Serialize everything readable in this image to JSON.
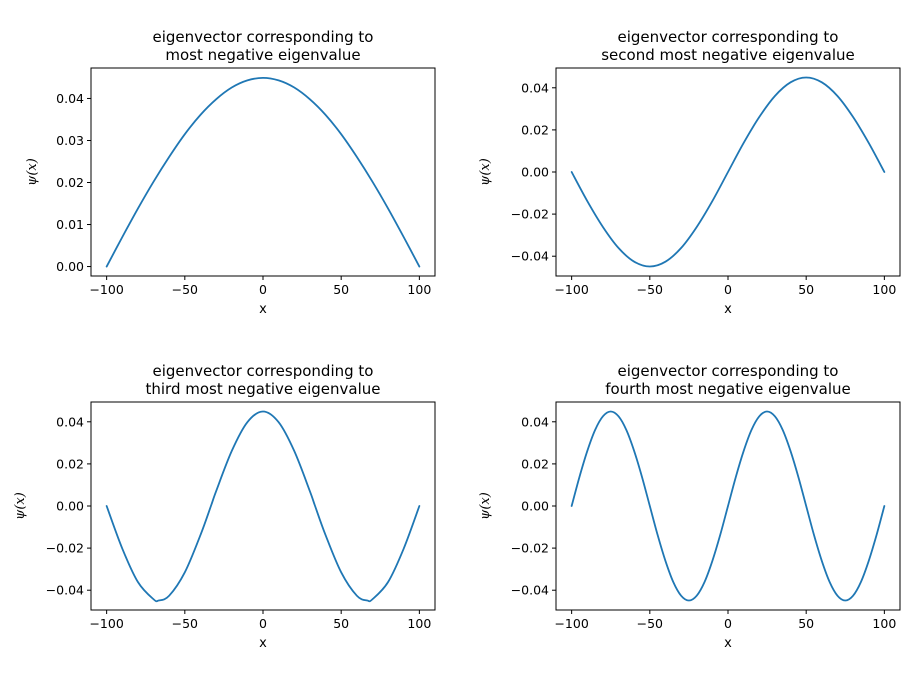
{
  "chart_data": [
    {
      "type": "line",
      "title_lines": [
        "eigenvector corresponding to",
        "most negative eigenvalue"
      ],
      "xlabel": "x",
      "ylabel": "ψ(x)",
      "xlim": [
        -110,
        110
      ],
      "ylim": [
        -0.00225,
        0.04725
      ],
      "xticks": [
        -100,
        -50,
        0,
        50,
        100
      ],
      "xtick_labels": [
        "−100",
        "−50",
        "0",
        "50",
        "100"
      ],
      "yticks": [
        0.0,
        0.01,
        0.02,
        0.03,
        0.04
      ],
      "ytick_labels": [
        "0.00",
        "0.01",
        "0.02",
        "0.03",
        "0.04"
      ],
      "color": "#1f77b4",
      "x": [
        -100,
        -90,
        -80,
        -70,
        -60,
        -50,
        -40,
        -30,
        -20,
        -10,
        0,
        10,
        20,
        30,
        40,
        50,
        60,
        70,
        80,
        90,
        100
      ],
      "y": [
        0.0,
        0.007,
        0.0138,
        0.0202,
        0.0261,
        0.0315,
        0.0361,
        0.0398,
        0.0426,
        0.0443,
        0.0449,
        0.0443,
        0.0426,
        0.0398,
        0.0361,
        0.0315,
        0.0261,
        0.0202,
        0.0138,
        0.007,
        0.0
      ]
    },
    {
      "type": "line",
      "title_lines": [
        "eigenvector corresponding to",
        "second most negative eigenvalue"
      ],
      "xlabel": "x",
      "ylabel": "ψ(x)",
      "xlim": [
        -110,
        110
      ],
      "ylim": [
        -0.0494,
        0.0494
      ],
      "xticks": [
        -100,
        -50,
        0,
        50,
        100
      ],
      "xtick_labels": [
        "−100",
        "−50",
        "0",
        "50",
        "100"
      ],
      "yticks": [
        -0.04,
        -0.02,
        0.0,
        0.02,
        0.04
      ],
      "ytick_labels": [
        "−0.04",
        "−0.02",
        "0.00",
        "0.02",
        "0.04"
      ],
      "color": "#1f77b4",
      "x": [
        -100,
        -90,
        -80,
        -70,
        -60,
        -50,
        -40,
        -30,
        -20,
        -10,
        0,
        10,
        20,
        30,
        40,
        50,
        60,
        70,
        80,
        90,
        100
      ],
      "y": [
        0.0,
        -0.0138,
        -0.0261,
        -0.0361,
        -0.0426,
        -0.0449,
        -0.0426,
        -0.0361,
        -0.0261,
        -0.0138,
        0.0,
        0.0138,
        0.0261,
        0.0361,
        0.0426,
        0.0449,
        0.0426,
        0.0361,
        0.0261,
        0.0138,
        0.0
      ]
    },
    {
      "type": "line",
      "title_lines": [
        "eigenvector corresponding to",
        "third most negative eigenvalue"
      ],
      "xlabel": "x",
      "ylabel": "ψ(x)",
      "xlim": [
        -110,
        110
      ],
      "ylim": [
        -0.0494,
        0.0494
      ],
      "xticks": [
        -100,
        -50,
        0,
        50,
        100
      ],
      "xtick_labels": [
        "−100",
        "−50",
        "0",
        "50",
        "100"
      ],
      "yticks": [
        -0.04,
        -0.02,
        0.0,
        0.02,
        0.04
      ],
      "ytick_labels": [
        "−0.04",
        "−0.02",
        "0.00",
        "0.02",
        "0.04"
      ],
      "color": "#1f77b4",
      "x": [
        -100,
        -90,
        -80,
        -70,
        -66.7,
        -60,
        -50,
        -40,
        -33.3,
        -30,
        -20,
        -10,
        0,
        10,
        20,
        30,
        33.3,
        40,
        50,
        60,
        66.7,
        70,
        80,
        90,
        100
      ],
      "y": [
        0.0,
        -0.0202,
        -0.0361,
        -0.0443,
        -0.0449,
        -0.0426,
        -0.0315,
        -0.0138,
        0.0,
        0.007,
        0.0261,
        0.0398,
        0.0449,
        0.0398,
        0.0261,
        0.007,
        0.0,
        -0.0138,
        -0.0315,
        -0.0426,
        -0.0449,
        -0.0443,
        -0.0361,
        -0.0202,
        0.0
      ]
    },
    {
      "type": "line",
      "title_lines": [
        "eigenvector corresponding to",
        "fourth most negative eigenvalue"
      ],
      "xlabel": "x",
      "ylabel": "ψ(x)",
      "xlim": [
        -110,
        110
      ],
      "ylim": [
        -0.0494,
        0.0494
      ],
      "xticks": [
        -100,
        -50,
        0,
        50,
        100
      ],
      "xtick_labels": [
        "−100",
        "−50",
        "0",
        "50",
        "100"
      ],
      "yticks": [
        -0.04,
        -0.02,
        0.0,
        0.02,
        0.04
      ],
      "ytick_labels": [
        "−0.04",
        "−0.02",
        "0.00",
        "0.02",
        "0.04"
      ],
      "color": "#1f77b4",
      "x": [
        -100,
        -95,
        -90,
        -85,
        -80,
        -75,
        -70,
        -65,
        -60,
        -55,
        -50,
        -45,
        -40,
        -35,
        -30,
        -25,
        -20,
        -15,
        -10,
        -5,
        0,
        5,
        10,
        15,
        20,
        25,
        30,
        35,
        40,
        45,
        50,
        55,
        60,
        65,
        70,
        75,
        80,
        85,
        90,
        95,
        100
      ],
      "y": [
        0.0,
        0.0138,
        0.0261,
        0.0361,
        0.0426,
        0.0449,
        0.0426,
        0.0361,
        0.0261,
        0.0138,
        0.0,
        -0.0138,
        -0.0261,
        -0.0361,
        -0.0426,
        -0.0449,
        -0.0426,
        -0.0361,
        -0.0261,
        -0.0138,
        0.0,
        0.0138,
        0.0261,
        0.0361,
        0.0426,
        0.0449,
        0.0426,
        0.0361,
        0.0261,
        0.0138,
        0.0,
        -0.0138,
        -0.0261,
        -0.0361,
        -0.0426,
        -0.0449,
        -0.0426,
        -0.0361,
        -0.0261,
        -0.0138,
        0.0
      ]
    }
  ]
}
